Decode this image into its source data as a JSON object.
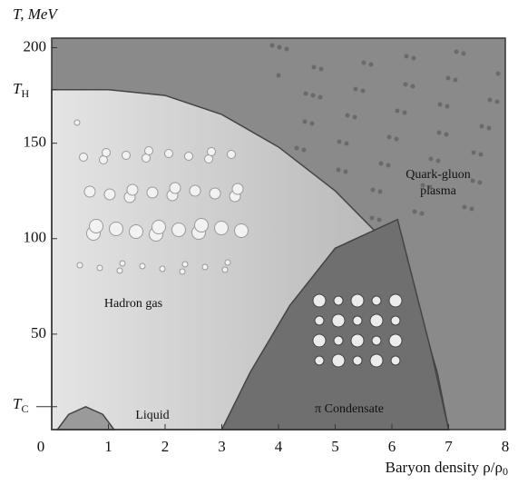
{
  "chart_data": {
    "type": "phase",
    "y_label": "T, MeV",
    "x_label": "Baryon density ρ/ρ",
    "x_label_subscript": "0",
    "xlim": [
      0,
      8
    ],
    "xticks": [
      0,
      1,
      2,
      3,
      4,
      5,
      6,
      7,
      8
    ],
    "ylim": [
      0,
      205
    ],
    "yticks": [
      50,
      100,
      150,
      200
    ],
    "special_ticks": [
      {
        "value": 178,
        "label": "T",
        "subscript": "H"
      },
      {
        "value": 12,
        "label": "T",
        "subscript": "C"
      }
    ],
    "regions": [
      {
        "name": "Hadron gas",
        "color": "#c9c9c9",
        "x": [
          0,
          1,
          2,
          3,
          4,
          5,
          6,
          6.5,
          6.8,
          7
        ],
        "values": [
          178,
          178,
          175,
          165,
          148,
          125,
          95,
          60,
          30,
          0
        ]
      },
      {
        "name": "π Condensate",
        "color": "#6f6f6f",
        "x": [
          3,
          3.5,
          4.2,
          5,
          6.1,
          6.4,
          6.7,
          7
        ],
        "values": [
          0,
          30,
          65,
          95,
          110,
          75,
          40,
          0
        ]
      },
      {
        "name": "Liquid",
        "color": "#9a9a9a",
        "x": [
          0.1,
          0.3,
          0.6,
          0.9,
          1.1
        ],
        "values": [
          0,
          8,
          12,
          8,
          0
        ]
      }
    ],
    "annotations": [
      "Quark-gluon",
      "plasma"
    ],
    "background": "#8a8a8a"
  }
}
